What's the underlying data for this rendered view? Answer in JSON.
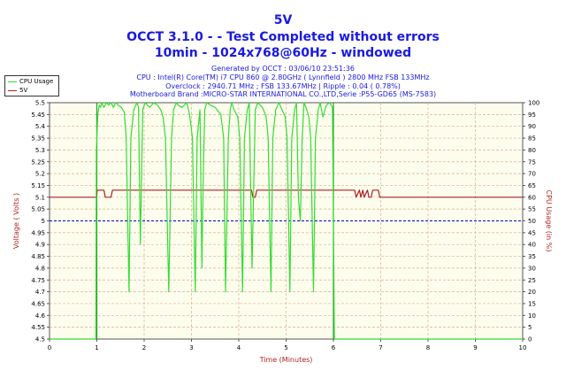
{
  "title": "5V",
  "subtitle": "OCCT 3.1.0 -  - Test Completed without errors",
  "subtitle2": "10min - 1024x768@60Hz - windowed",
  "info": {
    "generated": "Generated by OCCT : 03/06/10 23:51:36",
    "cpu": "CPU : Intel(R) Core(TM) i7 CPU 860 @ 2.80GHz ( Lynnfield ) 2800 MHz FSB 133MHz",
    "overclock": "Overclock : 2940.71 MHz ; FSB 133.67MHz | Ripple : 0.04 ( 0.78%)",
    "motherboard": "Motherboard Brand :MICRO-STAR INTERNATIONAL CO.,LTD,Serie :P55-GD65 (MS-7583)"
  },
  "legend": [
    {
      "name": "CPU Usage",
      "color": "#33dd33"
    },
    {
      "name": "5V",
      "color": "#aa2222"
    }
  ],
  "colors": {
    "plot_bg": "#fdfdee",
    "grid": "#d8b090",
    "cpu": "#33dd33",
    "voltage": "#aa2222",
    "reference": "#2222cc",
    "marker": "#2a9d2a"
  },
  "chart_data": {
    "type": "line",
    "xlabel": "Time (Minutes)",
    "ylabel": "Voltage ( Volts )",
    "y2label": "CPU Usage (in %)",
    "xlim": [
      0,
      10
    ],
    "ylim": [
      4.5,
      5.5
    ],
    "y2lim": [
      0,
      100
    ],
    "x_ticks": [
      "0",
      "1",
      "2",
      "3",
      "4",
      "5",
      "6",
      "7",
      "8",
      "9",
      "10"
    ],
    "y_ticks": [
      "4.5",
      "4.55",
      "4.6",
      "4.65",
      "4.7",
      "4.75",
      "4.8",
      "4.85",
      "4.9",
      "4.95",
      "5",
      "5.05",
      "5.1",
      "5.15",
      "5.2",
      "5.25",
      "5.3",
      "5.35",
      "5.4",
      "5.45",
      "5.5"
    ],
    "y2_ticks": [
      "0",
      "5",
      "10",
      "15",
      "20",
      "25",
      "30",
      "35",
      "40",
      "45",
      "50",
      "55",
      "60",
      "65",
      "70",
      "75",
      "80",
      "85",
      "90",
      "95",
      "100"
    ],
    "grid": true,
    "legend_position": "top-left",
    "reference_line": {
      "y": 5.0,
      "axis": "left"
    },
    "markers_x": [
      1,
      6
    ],
    "series": [
      {
        "name": "5V",
        "axis": "left",
        "x": [
          0,
          0.99,
          1.01,
          1.15,
          1.18,
          1.3,
          1.33,
          4.27,
          4.3,
          4.35,
          4.38,
          6.45,
          6.48,
          6.55,
          6.58,
          6.62,
          6.65,
          6.72,
          6.75,
          6.8,
          6.83,
          6.95,
          6.98,
          10
        ],
        "values": [
          5.1,
          5.1,
          5.13,
          5.13,
          5.1,
          5.1,
          5.13,
          5.13,
          5.1,
          5.1,
          5.13,
          5.13,
          5.1,
          5.13,
          5.1,
          5.13,
          5.1,
          5.13,
          5.1,
          5.1,
          5.13,
          5.13,
          5.1,
          5.1
        ]
      },
      {
        "name": "CPU Usage",
        "axis": "right",
        "x": [
          0,
          0.98,
          0.99,
          1.02,
          1.05,
          1.08,
          1.1,
          1.15,
          1.2,
          1.25,
          1.3,
          1.35,
          1.4,
          1.45,
          1.52,
          1.58,
          1.62,
          1.68,
          1.72,
          1.78,
          1.85,
          1.88,
          1.92,
          1.97,
          2.02,
          2.12,
          2.2,
          2.28,
          2.35,
          2.4,
          2.45,
          2.52,
          2.58,
          2.62,
          2.68,
          2.72,
          2.8,
          2.9,
          2.96,
          3.02,
          3.08,
          3.12,
          3.18,
          3.22,
          3.25,
          3.28,
          3.32,
          3.4,
          3.5,
          3.62,
          3.68,
          3.72,
          3.78,
          3.82,
          3.85,
          3.9,
          3.98,
          4.02,
          4.08,
          4.12,
          4.18,
          4.22,
          4.28,
          4.35,
          4.4,
          4.5,
          4.58,
          4.62,
          4.68,
          4.72,
          4.78,
          4.85,
          4.98,
          5.02,
          5.08,
          5.12,
          5.18,
          5.22,
          5.26,
          5.3,
          5.34,
          5.38,
          5.42,
          5.48,
          5.52,
          5.58,
          5.62,
          5.68,
          5.72,
          5.78,
          5.85,
          5.92,
          5.98,
          6.0,
          6.02,
          6.05,
          6.1,
          10
        ],
        "values": [
          0,
          0,
          80,
          95,
          99,
          98,
          100,
          98,
          100,
          99,
          100,
          98,
          100,
          99,
          98,
          96,
          85,
          20,
          85,
          97,
          100,
          98,
          40,
          97,
          100,
          98,
          100,
          99,
          97,
          94,
          85,
          20,
          85,
          97,
          100,
          99,
          98,
          100,
          95,
          85,
          20,
          85,
          97,
          30,
          70,
          97,
          100,
          99,
          98,
          95,
          85,
          20,
          85,
          97,
          100,
          97,
          94,
          85,
          20,
          85,
          97,
          100,
          30,
          97,
          100,
          98,
          94,
          85,
          20,
          85,
          97,
          100,
          94,
          85,
          20,
          85,
          97,
          100,
          60,
          50,
          85,
          100,
          98,
          94,
          85,
          20,
          85,
          97,
          100,
          94,
          99,
          100,
          98,
          50,
          0,
          0,
          0,
          0
        ]
      }
    ]
  }
}
